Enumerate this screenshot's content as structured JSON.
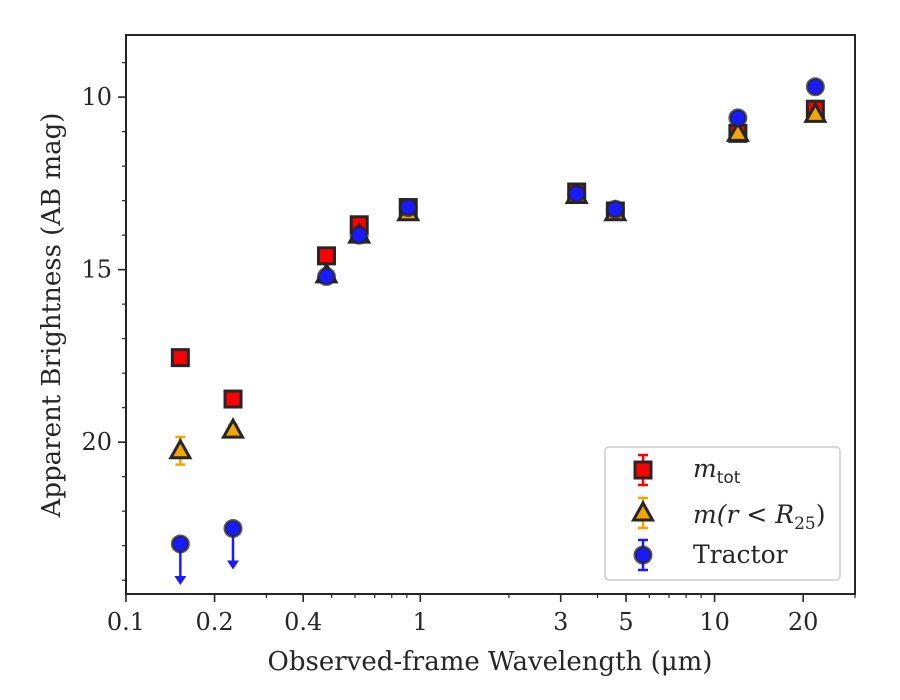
{
  "chart_data": {
    "type": "scatter",
    "xlabel": "Observed-frame Wavelength (μm)",
    "ylabel": "Apparent Brightness (AB mag)",
    "xscale": "log",
    "xlim": [
      0.1,
      30
    ],
    "ylim": [
      24.4,
      8.2
    ],
    "y_inverted": true,
    "x_tick_labels": [
      "0.1",
      "0.2",
      "0.4",
      "1",
      "3",
      "5",
      "10",
      "20"
    ],
    "x_tick_values": [
      0.1,
      0.2,
      0.4,
      1,
      3,
      5,
      10,
      20
    ],
    "y_tick_labels": [
      "10",
      "15",
      "20"
    ],
    "y_tick_values": [
      10,
      15,
      20
    ],
    "grid": false,
    "legend_position": "lower-right",
    "series": [
      {
        "name": "m_tot",
        "legend_main": "m",
        "legend_sub": "tot",
        "marker": "square",
        "color": "#ff0000",
        "edge": "#262626",
        "x": [
          0.153,
          0.231,
          0.48,
          0.62,
          0.91,
          3.4,
          4.6,
          12.0,
          22.0
        ],
        "y": [
          17.55,
          18.75,
          14.6,
          13.7,
          13.2,
          12.75,
          13.3,
          11.05,
          10.35
        ]
      },
      {
        "name": "m(r < R25)",
        "legend_text": "m(r < R",
        "legend_sub": "25",
        "legend_close": ")",
        "marker": "triangle",
        "color": "#f5a500",
        "edge": "#262626",
        "x": [
          0.153,
          0.231,
          0.48,
          0.62,
          0.91,
          3.4,
          4.6,
          12.0,
          22.0
        ],
        "y": [
          20.25,
          19.65,
          15.15,
          14.0,
          13.35,
          12.85,
          13.35,
          11.05,
          10.5
        ],
        "yerr": [
          0.4,
          0.15,
          0.05,
          0.05,
          0.05,
          0.05,
          0.05,
          0.05,
          0.05
        ]
      },
      {
        "name": "Tractor",
        "marker": "circle",
        "color": "#1a1aff",
        "edge": "#262626",
        "x": [
          0.153,
          0.231,
          0.48,
          0.62,
          0.91,
          3.4,
          4.6,
          12.0,
          22.0
        ],
        "y": [
          22.95,
          22.5,
          15.2,
          14.0,
          13.2,
          12.8,
          13.25,
          10.6,
          9.7
        ],
        "upper_limit": [
          true,
          true,
          false,
          false,
          false,
          false,
          false,
          false,
          false
        ]
      }
    ]
  }
}
